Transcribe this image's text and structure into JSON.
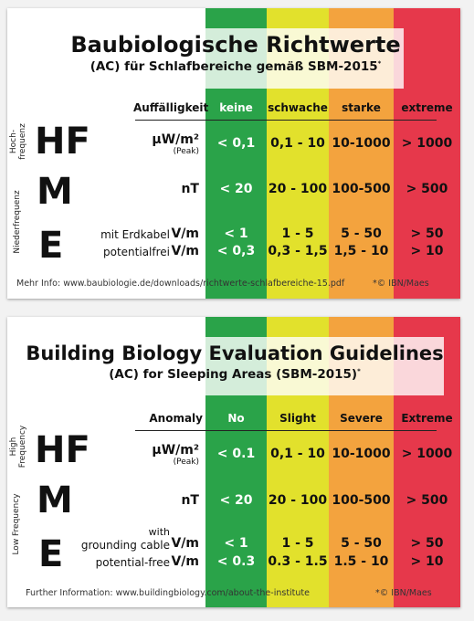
{
  "colors": {
    "green": "#2aa349",
    "yellow": "#e2e12c",
    "orange": "#f3a33e",
    "red": "#e6384b"
  },
  "card_de": {
    "title": "Baubiologische Richtwerte",
    "subtitle": "(AC) für Schlafbereiche gemäß SBM-2015",
    "subtitle_mark": "*",
    "header_label": "Auffälligkeit",
    "columns": [
      "keine",
      "schwache",
      "starke",
      "extreme"
    ],
    "hf_side": [
      "Hoch-",
      "frequenz"
    ],
    "lf_side": "Niederfrequenz",
    "hf_letter": "HF",
    "m_letter": "M",
    "e_letter": "E",
    "hf_unit": "µW/m²",
    "hf_unit_sub": "(Peak)",
    "hf_values": [
      "< 0,1",
      "0,1 - 10",
      "10-1000",
      "> 1000"
    ],
    "m_unit": "nT",
    "m_values": [
      "< 20",
      "20 - 100",
      "100-500",
      "> 500"
    ],
    "e1_label": "mit Erdkabel",
    "e1_unit": "V/m",
    "e1_values": [
      "< 1",
      "1 - 5",
      "5 - 50",
      "> 50"
    ],
    "e2_label": "potentialfrei",
    "e2_unit": "V/m",
    "e2_values": [
      "< 0,3",
      "0,3 - 1,5",
      "1,5 - 10",
      "> 10"
    ],
    "footer_left": "Mehr Info: www.baubiologie.de/downloads/richtwerte-schlafbereiche-15.pdf",
    "footer_right": "*© IBN/Maes"
  },
  "card_en": {
    "title": "Building Biology Evaluation Guidelines",
    "subtitle": "(AC) for Sleeping Areas (SBM-2015)",
    "subtitle_mark": "*",
    "header_label": "Anomaly",
    "columns": [
      "No",
      "Slight",
      "Severe",
      "Extreme"
    ],
    "hf_side": [
      "High",
      "Frequency"
    ],
    "lf_side": "Low   Frequency",
    "hf_letter": "HF",
    "m_letter": "M",
    "e_letter": "E",
    "hf_unit": "µW/m²",
    "hf_unit_sub": "(Peak)",
    "hf_values": [
      "< 0.1",
      "0,1 - 10",
      "10-1000",
      "> 1000"
    ],
    "m_unit": "nT",
    "m_values": [
      "< 20",
      "20 - 100",
      "100-500",
      "> 500"
    ],
    "e1_label_top": "with",
    "e1_label": "grounding cable",
    "e1_unit": "V/m",
    "e1_values": [
      "< 1",
      "1 - 5",
      "5 - 50",
      "> 50"
    ],
    "e2_label": "potential-free",
    "e2_unit": "V/m",
    "e2_values": [
      "< 0.3",
      "0.3 - 1.5",
      "1.5 - 10",
      "> 10"
    ],
    "footer_left": "Further Information:  www.buildingbiology.com/about-the-institute",
    "footer_right": "*© IBN/Maes"
  }
}
